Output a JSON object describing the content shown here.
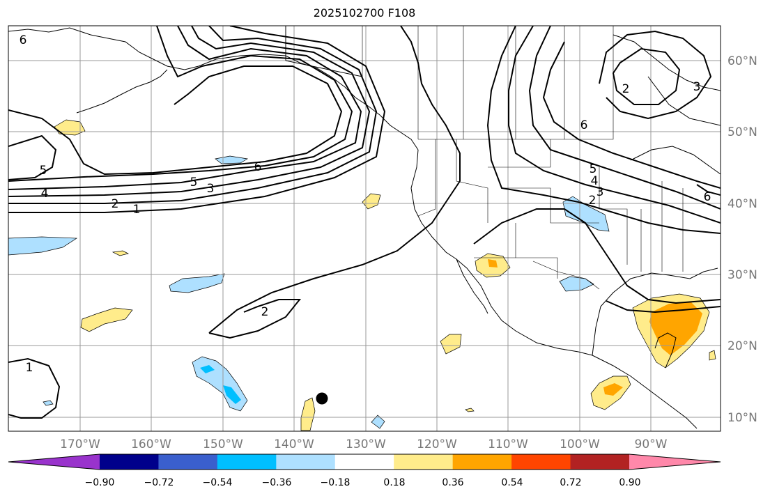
{
  "title": "2025102700 F108",
  "lat_labels": [
    "60°N",
    "50°N",
    "40°N",
    "30°N",
    "20°N",
    "10°N"
  ],
  "lon_labels": [
    "170°W",
    "160°W",
    "150°W",
    "140°W",
    "130°W",
    "120°W",
    "110°W",
    "100°W",
    "90°W"
  ],
  "colorbar": {
    "tick_labels": [
      "−0.90",
      "−0.72",
      "−0.54",
      "−0.36",
      "−0.18",
      "0.18",
      "0.36",
      "0.54",
      "0.72",
      "0.90"
    ],
    "colors": [
      "#9933cc",
      "#00008b",
      "#3a5fcd",
      "#00bfff",
      "#aee0ff",
      "#ffffff",
      "#ffec8b",
      "#ffa500",
      "#ff4500",
      "#b22222",
      "#ff88aa"
    ]
  },
  "contour_labels": [
    "6",
    "6",
    "5",
    "4",
    "2",
    "1",
    "5",
    "3",
    "2",
    "1",
    "6",
    "5",
    "4",
    "3",
    "2",
    "2",
    "3",
    "6"
  ],
  "colors": {
    "contour": "#000000",
    "grid": "#888888",
    "land_border": "#000000"
  },
  "marker": "filled-circle"
}
